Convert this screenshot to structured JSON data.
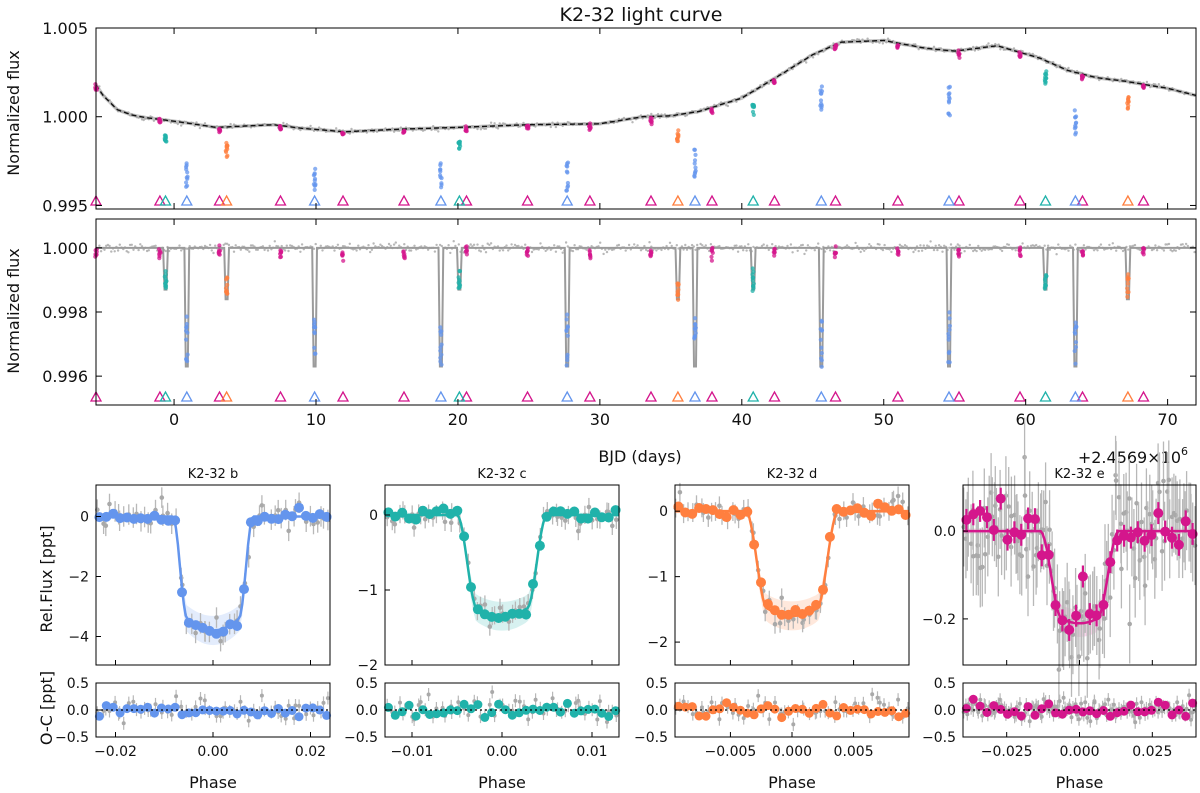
{
  "chart_data": {
    "type": "scatter",
    "title": "K2-32 light curve",
    "colors": {
      "b": "#6495ED",
      "c": "#20B2AA",
      "d": "#FF7F3F",
      "e": "#D4168C",
      "data": "#a0a0a0",
      "model": "#111111"
    },
    "light_curve": {
      "xlabel": "BJD (days)",
      "offset_label": "+2.4569×10",
      "offset_exp": "6",
      "x_ticks": [
        "0",
        "10",
        "20",
        "30",
        "40",
        "50",
        "60",
        "70"
      ],
      "xlim": [
        -5.5,
        72
      ],
      "top": {
        "ylabel": "Normalized flux",
        "ylim": [
          0.9948,
          1.005
        ],
        "y_ticks": [
          "0.995",
          "1.000",
          "1.005"
        ],
        "trend": {
          "x": [
            -5.5,
            -5,
            -4,
            -3,
            -2,
            0,
            3,
            7,
            9,
            12,
            16,
            20,
            25,
            30,
            33,
            35,
            37,
            40,
            43,
            45,
            47,
            50,
            53,
            55,
            58,
            61,
            63,
            65,
            67,
            70,
            72
          ],
          "y": [
            1.0018,
            1.0012,
            1.0004,
            1.0001,
            0.99995,
            0.99975,
            0.9994,
            0.99955,
            0.99935,
            0.99915,
            0.9993,
            0.9994,
            0.99955,
            0.9996,
            1.0,
            1.00005,
            1.0003,
            1.00105,
            1.0025,
            1.0035,
            1.0042,
            1.0043,
            1.00385,
            1.0037,
            1.004,
            1.0033,
            1.0026,
            1.0022,
            1.002,
            1.0016,
            1.0012
          ]
        }
      },
      "bottom": {
        "ylabel": "Normalized flux",
        "ylim": [
          0.9951,
          1.0009
        ],
        "y_ticks": [
          "0.996",
          "0.998",
          "1.000"
        ]
      },
      "transits": {
        "b": {
          "times": [
            0.9,
            9.9,
            18.8,
            27.7,
            36.7,
            45.6,
            54.6,
            63.5
          ],
          "depth": 0.0037
        },
        "c": {
          "times": [
            -0.6,
            20.1,
            40.8,
            61.4
          ],
          "depth": 0.0013
        },
        "d": {
          "times": [
            3.7,
            35.5,
            67.2
          ],
          "depth": 0.0016
        },
        "e": {
          "times": [
            -5.5,
            -1.0,
            3.2,
            7.5,
            11.9,
            16.2,
            20.6,
            24.9,
            29.3,
            33.6,
            37.9,
            42.3,
            46.6,
            51.0,
            55.3,
            59.6,
            64.0,
            68.3
          ],
          "depth": 0.0002
        }
      }
    },
    "phase_panels": [
      {
        "key": "b",
        "title": "K2-32 b",
        "xlim": [
          -0.024,
          0.024
        ],
        "x_ticks": [
          "−0.02",
          "0.00",
          "0.02"
        ],
        "x_tick_vals": [
          -0.02,
          0,
          0.02
        ],
        "ylim": [
          -4.95,
          1.05
        ],
        "y_ticks": [
          "−4",
          "−2",
          "0"
        ],
        "y_tick_vals": [
          -4,
          -2,
          0
        ],
        "depth": 3.8,
        "t14": 0.0165,
        "tflat": 0.0105,
        "resid_ticks": [
          "−0.5",
          "0.0",
          "0.5"
        ]
      },
      {
        "key": "c",
        "title": "K2-32 c",
        "xlim": [
          -0.013,
          0.013
        ],
        "x_ticks": [
          "−0.01",
          "0.00",
          "0.01"
        ],
        "x_tick_vals": [
          -0.01,
          0,
          0.01
        ],
        "ylim": [
          -2.0,
          0.4
        ],
        "y_ticks": [
          "−2",
          "−1",
          "0"
        ],
        "y_tick_vals": [
          -2,
          -1,
          0
        ],
        "depth": 1.35,
        "t14": 0.01,
        "tflat": 0.0055,
        "resid_ticks": [
          "−0.5",
          "0.0",
          "0.5"
        ]
      },
      {
        "key": "d",
        "title": "K2-32 d",
        "xlim": [
          -0.0095,
          0.0095
        ],
        "x_ticks": [
          "−0.005",
          "0.000",
          "0.005"
        ],
        "x_tick_vals": [
          -0.005,
          0,
          0.005
        ],
        "ylim": [
          -2.35,
          0.4
        ],
        "y_ticks": [
          "−2",
          "−1",
          "0"
        ],
        "y_tick_vals": [
          -2,
          -1,
          0
        ],
        "depth": 1.6,
        "t14": 0.0075,
        "tflat": 0.004,
        "resid_ticks": [
          "−0.5",
          "0.0",
          "0.5"
        ]
      },
      {
        "key": "e",
        "title": "K2-32 e",
        "xlim": [
          -0.04,
          0.04
        ],
        "x_ticks": [
          "−0.025",
          "0.000",
          "0.025"
        ],
        "x_tick_vals": [
          -0.025,
          0,
          0.025
        ],
        "ylim": [
          -0.305,
          0.105
        ],
        "y_ticks": [
          "−0.2",
          "0.0"
        ],
        "y_tick_vals": [
          -0.2,
          0
        ],
        "depth": 0.21,
        "t14": 0.027,
        "tflat": 0.012,
        "resid_ticks": [
          "−0.5",
          "0.0",
          "0.5"
        ]
      }
    ],
    "phase_xlabel": "Phase",
    "phase_ylabel": "Rel.Flux [ppt]",
    "resid_ylabel": "O-C [ppt]",
    "resid_ylim": [
      -0.5,
      0.5
    ]
  }
}
